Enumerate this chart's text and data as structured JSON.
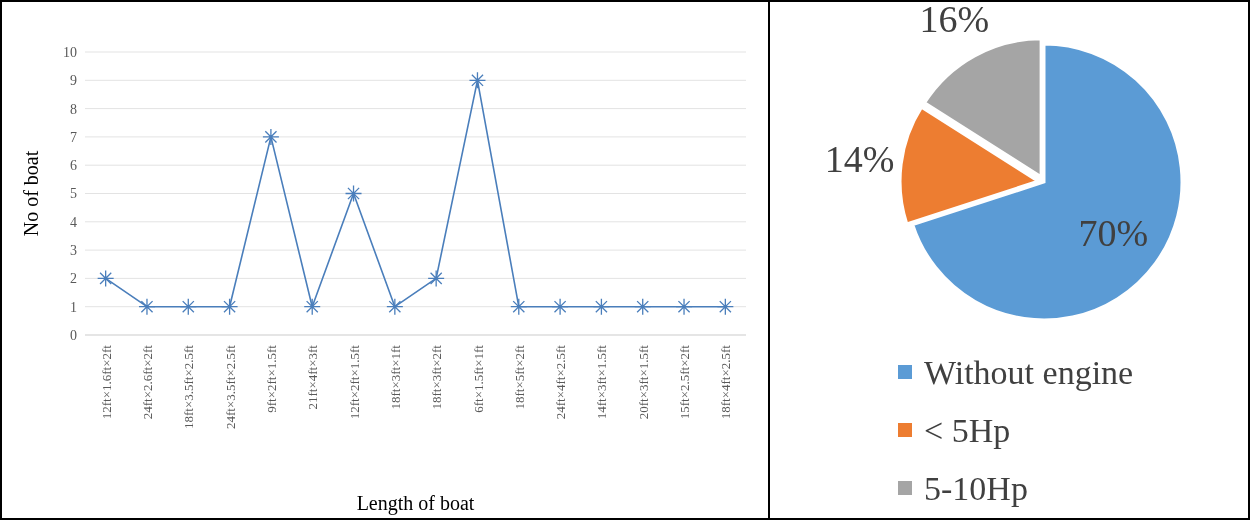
{
  "chart_data": [
    {
      "type": "line",
      "xlabel": "Length of boat",
      "ylabel": "No of boat",
      "categories": [
        "12ft×1.6ft×2ft",
        "24ft×2.6ft×2ft",
        "18ft×3.5ft×2.5ft",
        "24ft×3.5ft×2.5ft",
        "9ft×2ft×1.5ft",
        "21ft×4ft×3ft",
        "12ft×2ft×1.5ft",
        "18ft×3ft×1ft",
        "18ft×3ft×2ft",
        "6ft×1.5ft×1ft",
        "18ft×5ft×2ft",
        "24ft×4ft×2.5ft",
        "14ft×3ft×1.5ft",
        "20ft×3ft×1.5ft",
        "15ft×2.5ft×2ft",
        "18ft×4ft×2.5ft"
      ],
      "series": [
        {
          "color": "#4a7ebb",
          "values": [
            2,
            1,
            1,
            1,
            7,
            1,
            5,
            1,
            2,
            9,
            1,
            1,
            1,
            1,
            1,
            1
          ]
        }
      ],
      "ylim": [
        0,
        10
      ],
      "yticks": [
        0,
        1,
        2,
        3,
        4,
        5,
        6,
        7,
        8,
        9,
        10
      ],
      "grid": "y",
      "marker": "cross",
      "line_style": "solid"
    },
    {
      "type": "pie",
      "categories": [
        "Without engine",
        "< 5Hp",
        "5-10Hp"
      ],
      "values": [
        70,
        14,
        16
      ],
      "colors": [
        "#5b9bd5",
        "#ed7d31",
        "#a5a5a5"
      ],
      "value_labels": [
        "70%",
        "14%",
        "16%"
      ],
      "legend": "bottom"
    }
  ]
}
